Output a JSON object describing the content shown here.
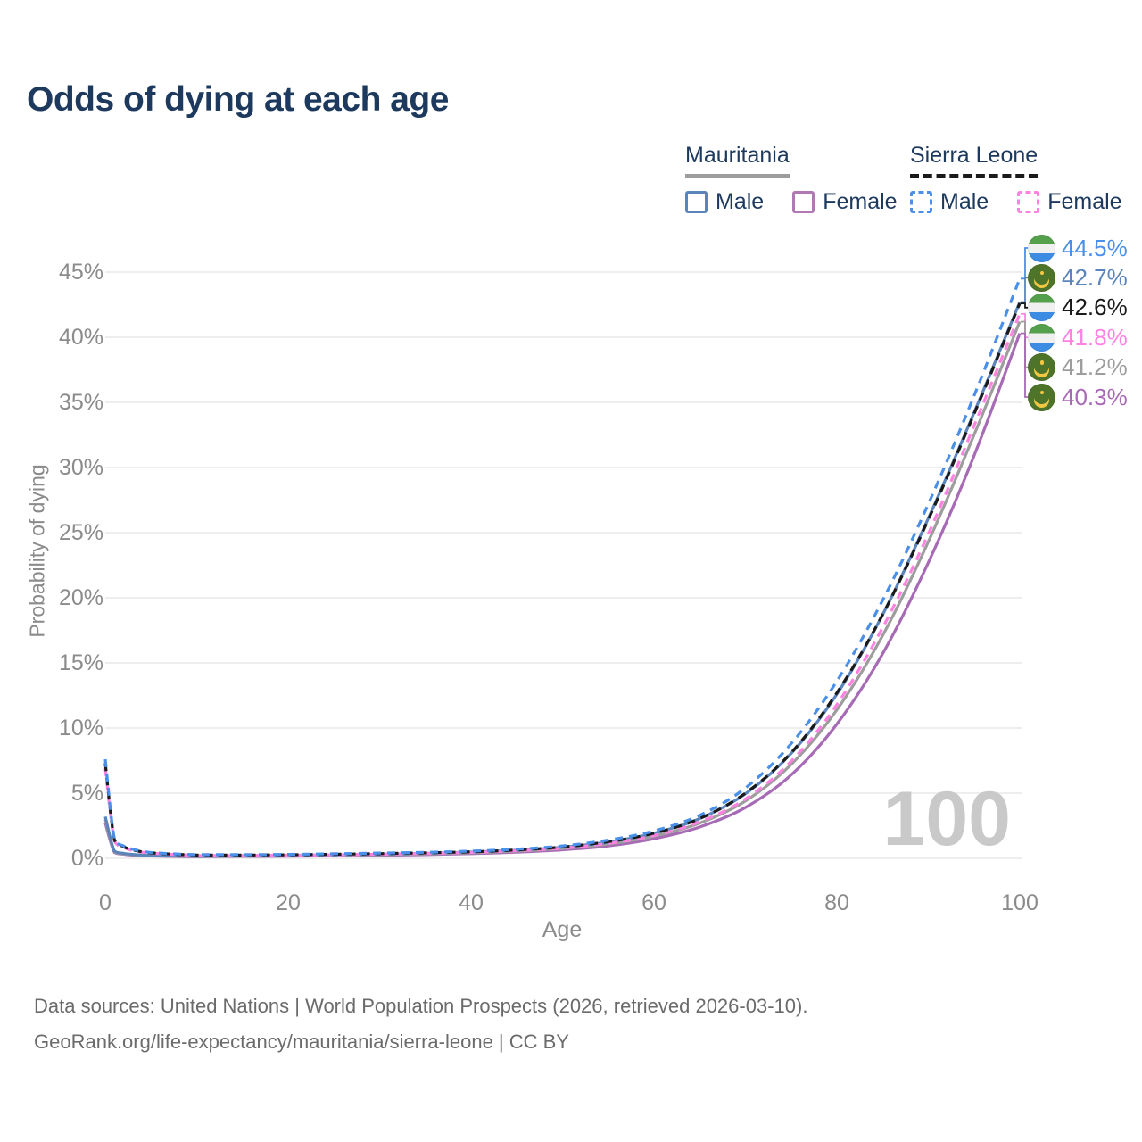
{
  "title": "Odds of dying at each age",
  "watermark_age": "100",
  "legend": {
    "groups": [
      {
        "name": "Mauritania",
        "line_style": "solid",
        "underline_color": "#9d9d9d",
        "items": [
          {
            "label": "Male",
            "color": "#5b84bb"
          },
          {
            "label": "Female",
            "color": "#b178b4"
          }
        ]
      },
      {
        "name": "Sierra Leone",
        "line_style": "dashed",
        "underline_color": "#1a1a1a",
        "items": [
          {
            "label": "Male",
            "color": "#4a8fe8"
          },
          {
            "label": "Female",
            "color": "#ff82e2"
          }
        ]
      }
    ]
  },
  "footer": {
    "line1": "Data sources: United Nations | World Population Prospects (2026, retrieved 2026-03-10).",
    "line2": "GeoRank.org/life-expectancy/mauritania/sierra-leone | CC BY"
  },
  "flags": {
    "sierra_leone": {
      "green": "#55a04c",
      "white": "#f0f0f0",
      "blue": "#3c8ce4"
    },
    "mauritania": {
      "green": "#4d7428",
      "gold": "#f2c744"
    }
  },
  "chart_data": {
    "type": "line",
    "title": "Odds of dying at each age",
    "xlabel": "Age",
    "ylabel": "Probability of dying",
    "xlim": [
      0,
      100
    ],
    "ylim_percent": [
      0,
      45
    ],
    "xticks": [
      0,
      20,
      40,
      60,
      80,
      100
    ],
    "ytick_labels": [
      "0%",
      "5%",
      "10%",
      "15%",
      "20%",
      "25%",
      "30%",
      "35%",
      "40%",
      "45%"
    ],
    "grid": "horizontal-only",
    "legend_position": "top-right",
    "current_age_marker": 100,
    "ages": [
      0,
      1,
      2,
      3,
      5,
      10,
      15,
      20,
      25,
      30,
      35,
      40,
      45,
      50,
      55,
      60,
      65,
      70,
      75,
      80,
      85,
      90,
      95,
      100
    ],
    "series": [
      {
        "id": "sl_male",
        "country": "Sierra Leone",
        "sex": "Male",
        "color": "#4a8fe8",
        "style": "dashed",
        "flag": "sierra_leone",
        "end_label": "44.5%",
        "values_percent": [
          7.6,
          1.5,
          0.95,
          0.7,
          0.45,
          0.28,
          0.28,
          0.3,
          0.35,
          0.4,
          0.46,
          0.55,
          0.7,
          0.95,
          1.4,
          2.1,
          3.3,
          5.4,
          8.8,
          13.6,
          19.8,
          27.2,
          35.5,
          44.5
        ]
      },
      {
        "id": "mr_male",
        "country": "Mauritania",
        "sex": "Male",
        "color": "#5b84bb",
        "style": "solid",
        "flag": "mauritania",
        "end_label": "42.7%",
        "values_percent": [
          3.2,
          0.55,
          0.38,
          0.3,
          0.22,
          0.16,
          0.18,
          0.22,
          0.26,
          0.31,
          0.38,
          0.48,
          0.62,
          0.85,
          1.25,
          1.92,
          3.05,
          4.95,
          8.05,
          12.6,
          18.7,
          26.1,
          34.2,
          42.7
        ]
      },
      {
        "id": "sl_both",
        "country": "Sierra Leone",
        "sex": "Both sexes",
        "color": "#1a1a1a",
        "style": "dashed",
        "flag": "sierra_leone",
        "end_label": "42.6%",
        "values_percent": [
          7.3,
          1.42,
          0.9,
          0.65,
          0.42,
          0.25,
          0.25,
          0.27,
          0.31,
          0.36,
          0.42,
          0.5,
          0.64,
          0.87,
          1.28,
          1.93,
          3.05,
          5.0,
          8.1,
          12.7,
          18.7,
          26.0,
          34.1,
          42.6
        ]
      },
      {
        "id": "sl_female",
        "country": "Sierra Leone",
        "sex": "Female",
        "color": "#ff82e2",
        "style": "dashed",
        "flag": "sierra_leone",
        "end_label": "41.8%",
        "values_percent": [
          6.9,
          1.35,
          0.85,
          0.6,
          0.4,
          0.22,
          0.22,
          0.24,
          0.27,
          0.31,
          0.37,
          0.45,
          0.58,
          0.78,
          1.15,
          1.75,
          2.8,
          4.55,
          7.45,
          11.8,
          17.7,
          24.9,
          33.2,
          41.8
        ]
      },
      {
        "id": "mr_both",
        "country": "Mauritania",
        "sex": "Both sexes",
        "color": "#9d9d9d",
        "style": "solid",
        "flag": "mauritania",
        "end_label": "41.2%",
        "values_percent": [
          3.0,
          0.5,
          0.34,
          0.27,
          0.2,
          0.14,
          0.16,
          0.19,
          0.23,
          0.27,
          0.33,
          0.42,
          0.55,
          0.75,
          1.1,
          1.7,
          2.7,
          4.4,
          7.2,
          11.4,
          17.1,
          24.3,
          32.5,
          41.2
        ]
      },
      {
        "id": "mr_female",
        "country": "Mauritania",
        "sex": "Female",
        "color": "#a76ab5",
        "style": "solid",
        "flag": "mauritania",
        "end_label": "40.3%",
        "values_percent": [
          2.7,
          0.45,
          0.31,
          0.24,
          0.18,
          0.12,
          0.14,
          0.16,
          0.19,
          0.23,
          0.28,
          0.36,
          0.47,
          0.65,
          0.95,
          1.5,
          2.4,
          3.9,
          6.4,
          10.3,
          15.7,
          22.7,
          30.9,
          40.3
        ]
      }
    ],
    "draw_order": [
      "mr_female",
      "mr_both",
      "mr_male",
      "sl_female",
      "sl_both",
      "sl_male"
    ]
  }
}
